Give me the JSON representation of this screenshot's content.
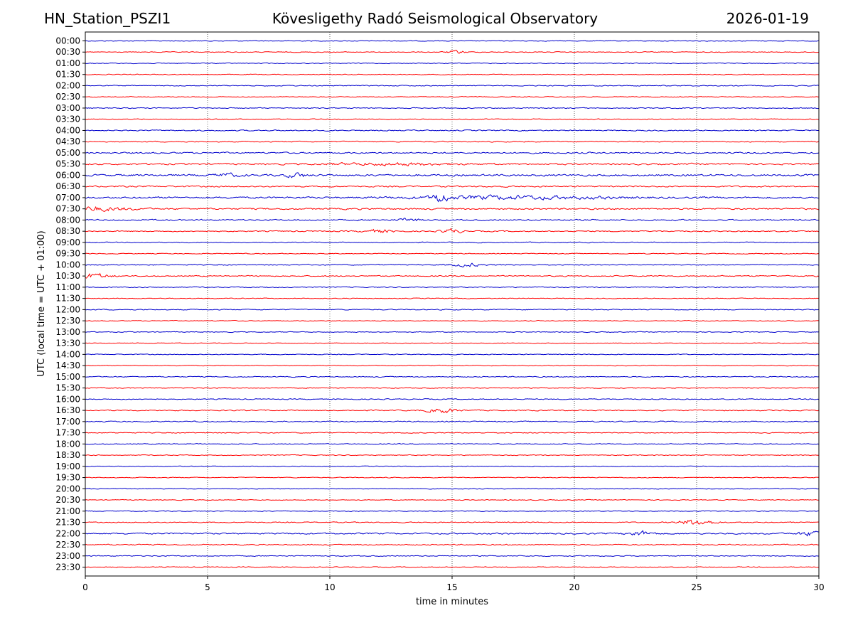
{
  "header": {
    "station": "HN_Station_PSZI1",
    "observatory": "Kövesligethy Radó Seismological Observatory",
    "date": "2026-01-19"
  },
  "chart_data": {
    "type": "line",
    "title": "Kövesligethy Radó Seismological Observatory",
    "xlabel": "time in minutes",
    "ylabel": "UTC (local time = UTC + 01:00)",
    "xlim": [
      0,
      30
    ],
    "xticks": [
      0,
      5,
      10,
      15,
      20,
      25,
      30
    ],
    "grid": "vertical dotted at x ticks",
    "trace_colors": [
      "#0000cc",
      "#ff0000"
    ],
    "rows": [
      "00:00",
      "00:30",
      "01:00",
      "01:30",
      "02:00",
      "02:30",
      "03:00",
      "03:30",
      "04:00",
      "04:30",
      "05:00",
      "05:30",
      "06:00",
      "06:30",
      "07:00",
      "07:30",
      "08:00",
      "08:30",
      "09:00",
      "09:30",
      "10:00",
      "10:30",
      "11:00",
      "11:30",
      "12:00",
      "12:30",
      "13:00",
      "13:30",
      "14:00",
      "14:30",
      "15:00",
      "15:30",
      "16:00",
      "16:30",
      "17:00",
      "17:30",
      "18:00",
      "18:30",
      "19:00",
      "19:30",
      "20:00",
      "20:30",
      "21:00",
      "21:30",
      "22:00",
      "22:30",
      "23:00",
      "23:30"
    ],
    "base_noise": [
      0.25,
      0.25,
      0.25,
      0.25,
      0.3,
      0.25,
      0.3,
      0.3,
      0.35,
      0.35,
      0.45,
      0.5,
      0.6,
      0.45,
      0.55,
      0.5,
      0.45,
      0.35,
      0.3,
      0.25,
      0.35,
      0.35,
      0.3,
      0.25,
      0.3,
      0.25,
      0.25,
      0.25,
      0.25,
      0.25,
      0.3,
      0.3,
      0.3,
      0.35,
      0.35,
      0.3,
      0.3,
      0.25,
      0.25,
      0.25,
      0.25,
      0.25,
      0.25,
      0.3,
      0.45,
      0.35,
      0.3,
      0.3
    ],
    "events": [
      {
        "row": "00:30",
        "t": 15.2,
        "amp": 0.6,
        "dur": 0.4
      },
      {
        "row": "05:30",
        "t": 12.5,
        "amp": 0.4,
        "dur": 2.5
      },
      {
        "row": "06:00",
        "t": 5.8,
        "amp": 0.6,
        "dur": 0.5
      },
      {
        "row": "06:00",
        "t": 8.6,
        "amp": 0.8,
        "dur": 0.4
      },
      {
        "row": "07:00",
        "t": 14.5,
        "amp": 1.8,
        "dur": 0.3
      },
      {
        "row": "07:00",
        "t": 17.5,
        "amp": 0.6,
        "dur": 4.0
      },
      {
        "row": "07:30",
        "t": 0.3,
        "amp": 0.7,
        "dur": 1.5
      },
      {
        "row": "08:00",
        "t": 13.2,
        "amp": 0.6,
        "dur": 0.4
      },
      {
        "row": "08:30",
        "t": 12.0,
        "amp": 0.6,
        "dur": 0.6
      },
      {
        "row": "08:30",
        "t": 15.0,
        "amp": 0.9,
        "dur": 0.4
      },
      {
        "row": "10:00",
        "t": 15.6,
        "amp": 0.6,
        "dur": 0.6
      },
      {
        "row": "10:30",
        "t": 0.4,
        "amp": 1.0,
        "dur": 0.6
      },
      {
        "row": "16:30",
        "t": 14.6,
        "amp": 0.9,
        "dur": 0.6
      },
      {
        "row": "21:30",
        "t": 25.0,
        "amp": 1.2,
        "dur": 0.7
      },
      {
        "row": "22:00",
        "t": 22.7,
        "amp": 0.9,
        "dur": 0.5
      },
      {
        "row": "22:00",
        "t": 29.7,
        "amp": 0.9,
        "dur": 0.5
      }
    ]
  }
}
